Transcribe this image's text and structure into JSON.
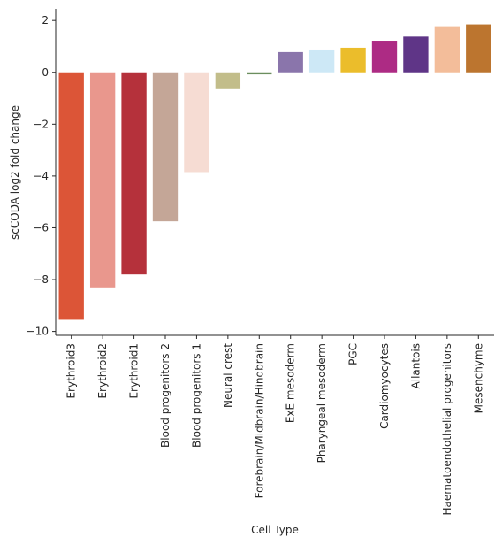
{
  "chart_data": {
    "type": "bar",
    "title": "",
    "xlabel": "Cell Type",
    "ylabel": "scCODA log2 fold change",
    "ylim": [
      -10.15,
      2.45
    ],
    "yticks": [
      -10,
      -8,
      -6,
      -4,
      -2,
      0,
      2
    ],
    "grid": false,
    "legend": "none",
    "categories": [
      "Erythroid3",
      "Erythroid2",
      "Erythroid1",
      "Blood progenitors 2",
      "Blood progenitors 1",
      "Neural crest",
      "Forebrain/Midbrain/Hindbrain",
      "ExE mesoderm",
      "Pharyngeal mesoderm",
      "PGC",
      "Cardiomyocytes",
      "Allantois",
      "Haematoendothelial progenitors",
      "Mesenchyme"
    ],
    "values": [
      -9.55,
      -8.3,
      -7.8,
      -5.75,
      -3.85,
      -0.65,
      -0.08,
      0.78,
      0.88,
      0.95,
      1.22,
      1.38,
      1.78,
      1.85
    ],
    "colors": [
      "#dc5537",
      "#e9978d",
      "#b5313b",
      "#c4a697",
      "#f6dcd3",
      "#c2bd8a",
      "#6b8e5e",
      "#8a75ab",
      "#cde8f6",
      "#ebbd2b",
      "#ad2b84",
      "#5f3587",
      "#f3bd9a",
      "#bc752f"
    ]
  }
}
